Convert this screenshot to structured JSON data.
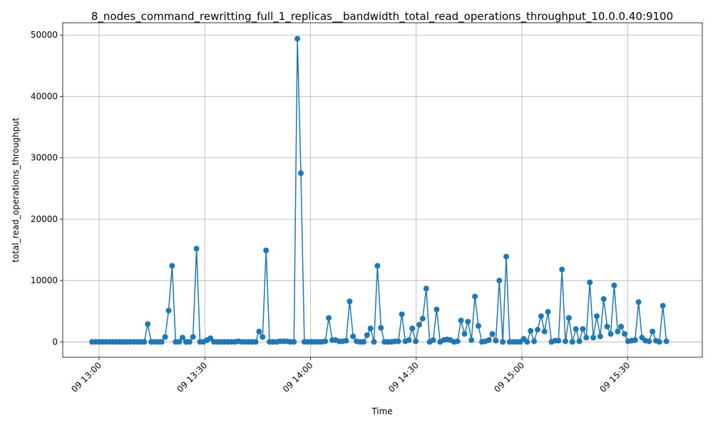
{
  "chart_data": {
    "type": "line",
    "title": "8_nodes_command_rewritting_full_1_replicas__bandwidth_total_read_operations_throughput_10.0.0.40:9100",
    "xlabel": "Time",
    "ylabel": "total_read_operations_throughput",
    "x_start": "09 12:58",
    "x_end": "09 15:41",
    "ylim": [
      -2500,
      52000
    ],
    "grid": true,
    "line_color": "#1f77b4",
    "x_ticks": [
      {
        "label": "09 13:00",
        "minute": 0
      },
      {
        "label": "09 13:30",
        "minute": 30
      },
      {
        "label": "09 14:00",
        "minute": 60
      },
      {
        "label": "09 14:30",
        "minute": 90
      },
      {
        "label": "09 15:00",
        "minute": 120
      },
      {
        "label": "09 15:30",
        "minute": 150
      }
    ],
    "y_ticks": [
      0,
      10000,
      20000,
      30000,
      40000,
      50000
    ],
    "values": [
      0,
      0,
      0,
      0,
      0,
      0,
      0,
      0,
      0,
      0,
      0,
      0,
      0,
      0,
      0,
      0,
      2900,
      0,
      0,
      0,
      0,
      800,
      5100,
      12400,
      0,
      0,
      700,
      0,
      0,
      800,
      15200,
      0,
      0,
      300,
      600,
      0,
      0,
      0,
      0,
      0,
      0,
      0,
      100,
      0,
      0,
      0,
      0,
      0,
      1700,
      800,
      14900,
      0,
      0,
      0,
      100,
      100,
      100,
      0,
      0,
      49400,
      27500,
      0,
      0,
      0,
      0,
      0,
      0,
      100,
      3900,
      300,
      300,
      100,
      100,
      200,
      6600,
      900,
      100,
      0,
      0,
      1100,
      2200,
      0,
      12400,
      2300,
      0,
      0,
      0,
      100,
      100,
      4500,
      100,
      300,
      2200,
      100,
      2800,
      3800,
      8700,
      0,
      300,
      5300,
      0,
      300,
      400,
      300,
      0,
      100,
      3500,
      1300,
      3300,
      300,
      7400,
      2600,
      0,
      100,
      300,
      1300,
      200,
      10000,
      0,
      13900,
      0,
      0,
      0,
      0,
      500,
      0,
      1800,
      100,
      2000,
      4200,
      1700,
      4900,
      0,
      200,
      200,
      11800,
      100,
      3900,
      0,
      2100,
      100,
      2100,
      700,
      9700,
      700,
      4200,
      900,
      7000,
      2500,
      1300,
      9200,
      1700,
      2500,
      1300,
      100,
      200,
      300,
      6500,
      700,
      200,
      100,
      1700,
      200,
      0,
      5900,
      100
    ]
  }
}
